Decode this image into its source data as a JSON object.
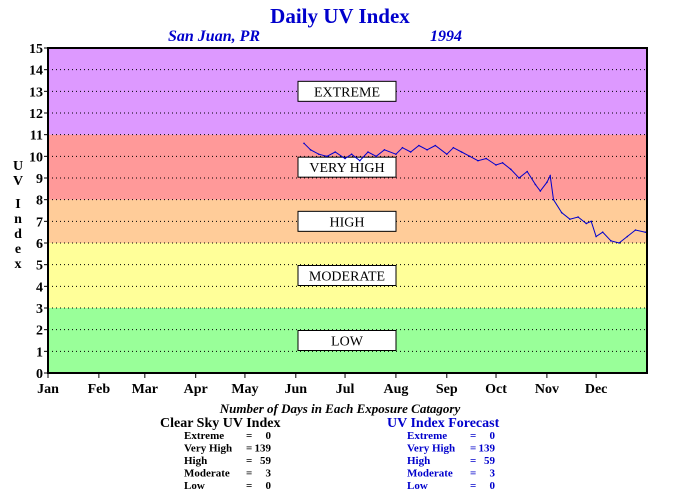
{
  "chart_data": {
    "type": "line",
    "title": "Daily UV Index",
    "location": "San Juan, PR",
    "year": "1994",
    "ylabel": "UV Index",
    "ylim": [
      0,
      15
    ],
    "y_ticks": [
      0,
      1,
      2,
      3,
      4,
      5,
      6,
      7,
      8,
      9,
      10,
      11,
      12,
      13,
      14,
      15
    ],
    "x_months": [
      "Jan",
      "Feb",
      "Mar",
      "Apr",
      "May",
      "Jun",
      "Jul",
      "Aug",
      "Sep",
      "Oct",
      "Nov",
      "Dec"
    ],
    "grid": true,
    "bands": [
      {
        "label": "LOW",
        "from": 0,
        "to": 3,
        "color": "#99ff99"
      },
      {
        "label": "MODERATE",
        "from": 3,
        "to": 6,
        "color": "#ffff99"
      },
      {
        "label": "HIGH",
        "from": 6,
        "to": 8,
        "color": "#ffcc99"
      },
      {
        "label": "VERY HIGH",
        "from": 8,
        "to": 11,
        "color": "#ff9999"
      },
      {
        "label": "EXTREME",
        "from": 11,
        "to": 15,
        "color": "#dd99ff"
      }
    ],
    "series": [
      {
        "color": "#0000cc",
        "points": [
          {
            "x": "Jun 6",
            "y": 10.6
          },
          {
            "x": "Jun 10",
            "y": 10.3
          },
          {
            "x": "Jun 15",
            "y": 10.1
          },
          {
            "x": "Jun 20",
            "y": 10.0
          },
          {
            "x": "Jun 25",
            "y": 10.2
          },
          {
            "x": "Jul 1",
            "y": 9.9
          },
          {
            "x": "Jul 5",
            "y": 10.1
          },
          {
            "x": "Jul 10",
            "y": 9.8
          },
          {
            "x": "Jul 15",
            "y": 10.2
          },
          {
            "x": "Jul 20",
            "y": 10.0
          },
          {
            "x": "Jul 25",
            "y": 10.3
          },
          {
            "x": "Aug 1",
            "y": 10.1
          },
          {
            "x": "Aug 5",
            "y": 10.4
          },
          {
            "x": "Aug 10",
            "y": 10.2
          },
          {
            "x": "Aug 15",
            "y": 10.5
          },
          {
            "x": "Aug 20",
            "y": 10.3
          },
          {
            "x": "Aug 25",
            "y": 10.5
          },
          {
            "x": "Sep 1",
            "y": 10.1
          },
          {
            "x": "Sep 5",
            "y": 10.4
          },
          {
            "x": "Sep 10",
            "y": 10.2
          },
          {
            "x": "Sep 15",
            "y": 10.0
          },
          {
            "x": "Sep 20",
            "y": 9.8
          },
          {
            "x": "Sep 25",
            "y": 9.9
          },
          {
            "x": "Oct 1",
            "y": 9.6
          },
          {
            "x": "Oct 5",
            "y": 9.7
          },
          {
            "x": "Oct 10",
            "y": 9.4
          },
          {
            "x": "Oct 15",
            "y": 9.0
          },
          {
            "x": "Oct 20",
            "y": 9.3
          },
          {
            "x": "Oct 25",
            "y": 8.7
          },
          {
            "x": "Oct 28",
            "y": 8.4
          },
          {
            "x": "Nov 1",
            "y": 8.8
          },
          {
            "x": "Nov 3",
            "y": 9.1
          },
          {
            "x": "Nov 5",
            "y": 8.0
          },
          {
            "x": "Nov 10",
            "y": 7.4
          },
          {
            "x": "Nov 15",
            "y": 7.1
          },
          {
            "x": "Nov 20",
            "y": 7.2
          },
          {
            "x": "Nov 25",
            "y": 6.9
          },
          {
            "x": "Nov 28",
            "y": 7.0
          },
          {
            "x": "Dec 1",
            "y": 6.3
          },
          {
            "x": "Dec 5",
            "y": 6.5
          },
          {
            "x": "Dec 10",
            "y": 6.1
          },
          {
            "x": "Dec 15",
            "y": 6.0
          },
          {
            "x": "Dec 20",
            "y": 6.3
          },
          {
            "x": "Dec 25",
            "y": 6.6
          },
          {
            "x": "Dec 31",
            "y": 6.5
          }
        ]
      }
    ]
  },
  "summary": {
    "title": "Number of Days in Each Exposure Catagory",
    "tables": [
      {
        "heading": "Clear Sky UV Index",
        "color": "#000000",
        "rows": [
          {
            "label": "Extreme",
            "sep": "=",
            "value": "0"
          },
          {
            "label": "Very High",
            "sep": "=",
            "value": "139"
          },
          {
            "label": "High",
            "sep": "=",
            "value": "59"
          },
          {
            "label": "Moderate",
            "sep": "=",
            "value": "3"
          },
          {
            "label": "Low",
            "sep": "=",
            "value": "0"
          }
        ]
      },
      {
        "heading": "UV Index Forecast",
        "color": "#0000cc",
        "rows": [
          {
            "label": "Extreme",
            "sep": "=",
            "value": "0"
          },
          {
            "label": "Very High",
            "sep": "=",
            "value": "139"
          },
          {
            "label": "High",
            "sep": "=",
            "value": "59"
          },
          {
            "label": "Moderate",
            "sep": "=",
            "value": "3"
          },
          {
            "label": "Low",
            "sep": "=",
            "value": "0"
          }
        ]
      }
    ]
  }
}
